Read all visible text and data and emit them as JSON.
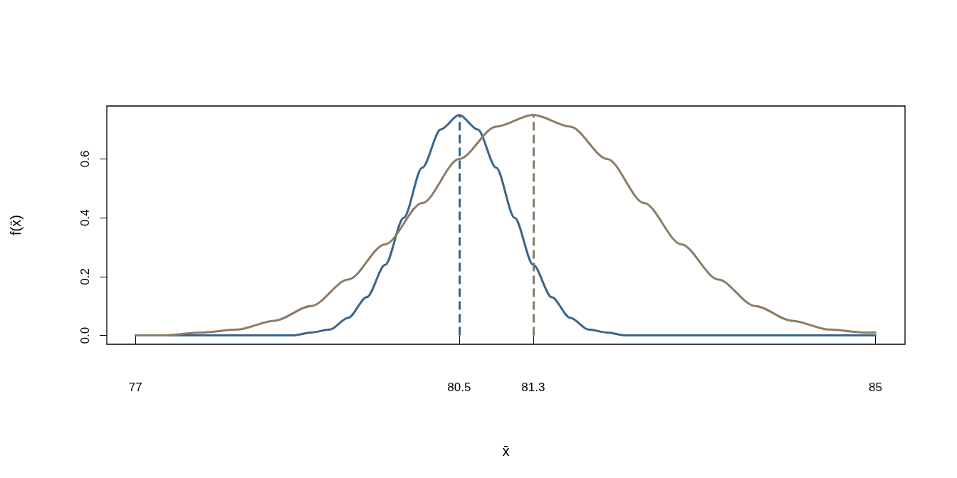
{
  "chart_data": {
    "type": "line",
    "xlabel": "x̄",
    "ylabel": "f(x̄)",
    "xlim": [
      76.69,
      85.32
    ],
    "xticks": [
      77,
      80.5,
      81.3,
      85
    ],
    "ylim": [
      -0.03,
      0.78
    ],
    "yticks": [
      {
        "value": 0,
        "label": "0.0"
      },
      0.2,
      0.4,
      0.6
    ],
    "grid": false,
    "marker": "none",
    "line_style": "solid",
    "series": [
      {
        "color": "#3b6489",
        "x": [
          77,
          78.1,
          78.3,
          78.5,
          78.7,
          78.9,
          79.1,
          79.3,
          79.5,
          79.7,
          79.9,
          80.1,
          80.3,
          80.5,
          80.7,
          80.9,
          81.1,
          81.3,
          81.5,
          81.7,
          81.9,
          82.1,
          82.3,
          82.5,
          82.7,
          82.9,
          85
        ],
        "values": [
          0,
          0,
          0,
          0,
          0,
          0.01,
          0.02,
          0.06,
          0.13,
          0.24,
          0.4,
          0.57,
          0.7,
          0.75,
          0.7,
          0.57,
          0.4,
          0.24,
          0.13,
          0.06,
          0.02,
          0.01,
          0,
          0,
          0,
          0,
          0
        ]
      },
      {
        "color": "#8b7d67",
        "x": [
          77,
          77.3,
          77.7,
          78.1,
          78.5,
          78.9,
          79.3,
          79.7,
          80.1,
          80.5,
          80.9,
          81.3,
          81.7,
          82.1,
          82.5,
          82.9,
          83.3,
          83.7,
          84.1,
          84.5,
          84.9,
          85
        ],
        "values": [
          0,
          0,
          0.01,
          0.02,
          0.05,
          0.1,
          0.19,
          0.31,
          0.45,
          0.6,
          0.71,
          0.75,
          0.71,
          0.6,
          0.45,
          0.31,
          0.19,
          0.1,
          0.05,
          0.02,
          0.01,
          0.01
        ]
      }
    ],
    "ref_lines": [
      {
        "axis": "x",
        "value": 80.5,
        "color": "#3b6489",
        "line_style": "dashed"
      },
      {
        "axis": "x",
        "value": 81.3,
        "color": "#8b7d67",
        "line_style": "dashed"
      }
    ]
  }
}
